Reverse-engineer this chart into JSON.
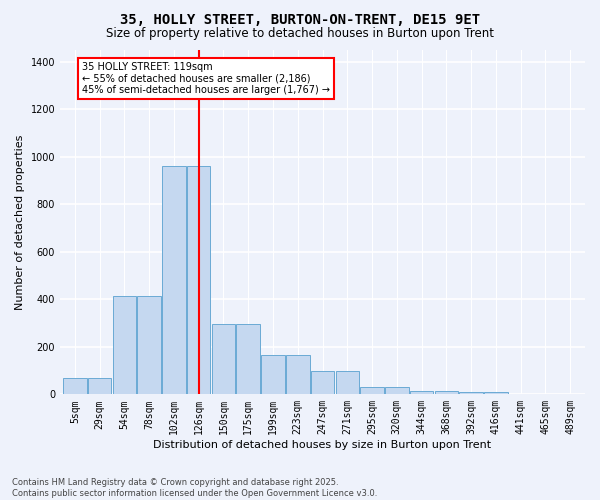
{
  "title": "35, HOLLY STREET, BURTON-ON-TRENT, DE15 9ET",
  "subtitle": "Size of property relative to detached houses in Burton upon Trent",
  "xlabel": "Distribution of detached houses by size in Burton upon Trent",
  "ylabel": "Number of detached properties",
  "categories": [
    "5sqm",
    "29sqm",
    "54sqm",
    "78sqm",
    "102sqm",
    "126sqm",
    "150sqm",
    "175sqm",
    "199sqm",
    "223sqm",
    "247sqm",
    "271sqm",
    "295sqm",
    "320sqm",
    "344sqm",
    "368sqm",
    "392sqm",
    "416sqm",
    "441sqm",
    "465sqm",
    "489sqm"
  ],
  "bar_heights": [
    70,
    70,
    415,
    415,
    960,
    960,
    295,
    295,
    165,
    165,
    100,
    100,
    30,
    30,
    15,
    15,
    8,
    8,
    3,
    3,
    2
  ],
  "bar_color": "#c5d8f0",
  "bar_edge_color": "#6aaad4",
  "vline_index": 5,
  "vline_color": "red",
  "annotation_line1": "35 HOLLY STREET: 119sqm",
  "annotation_line2": "← 55% of detached houses are smaller (2,186)",
  "annotation_line3": "45% of semi-detached houses are larger (1,767) →",
  "annotation_box_facecolor": "white",
  "annotation_box_edgecolor": "red",
  "ylim": [
    0,
    1450
  ],
  "yticks": [
    0,
    200,
    400,
    600,
    800,
    1000,
    1200,
    1400
  ],
  "footnote": "Contains HM Land Registry data © Crown copyright and database right 2025.\nContains public sector information licensed under the Open Government Licence v3.0.",
  "bg_color": "#eef2fb",
  "grid_color": "white",
  "title_fontsize": 10,
  "subtitle_fontsize": 8.5,
  "tick_fontsize": 7,
  "ylabel_fontsize": 8,
  "xlabel_fontsize": 8,
  "annot_fontsize": 7,
  "footnote_fontsize": 6
}
